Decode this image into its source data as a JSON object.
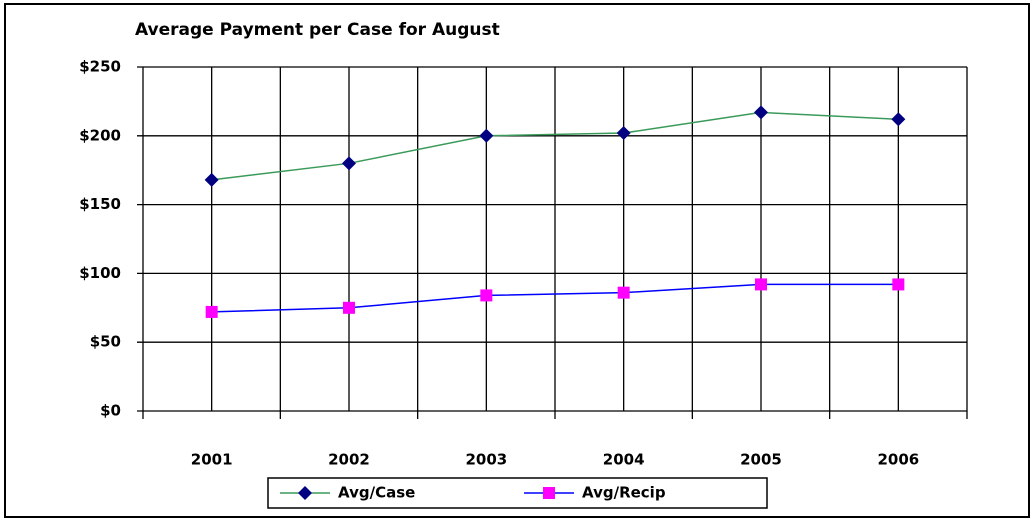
{
  "chart_data": {
    "type": "line",
    "title": "Average Payment per Case for August",
    "categories": [
      "2001",
      "2002",
      "2003",
      "2004",
      "2005",
      "2006"
    ],
    "series": [
      {
        "name": "Avg/Case",
        "color": "#3a9a5a",
        "marker_color": "#000080",
        "marker": "diamond",
        "values": [
          168,
          180,
          200,
          202,
          217,
          212
        ]
      },
      {
        "name": "Avg/Recip",
        "color": "#0000ff",
        "marker_color": "#ff00ff",
        "marker": "square",
        "values": [
          72,
          75,
          84,
          86,
          92,
          92
        ]
      }
    ],
    "ylim": [
      0,
      250
    ],
    "yticks": [
      {
        "value": 0,
        "label": "$0"
      },
      {
        "value": 50,
        "label": "$50"
      },
      {
        "value": 100,
        "label": "$100"
      },
      {
        "value": 150,
        "label": "$150"
      },
      {
        "value": 200,
        "label": "$200"
      },
      {
        "value": 250,
        "label": "$250"
      }
    ],
    "grid": true,
    "legend": "bottom"
  }
}
